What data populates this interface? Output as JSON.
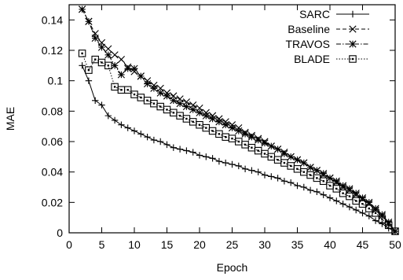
{
  "chart_data": {
    "type": "line",
    "xlabel": "Epoch",
    "ylabel": "MAE",
    "xlim": [
      0,
      50
    ],
    "ylim": [
      0,
      0.15
    ],
    "xticks": [
      0,
      5,
      10,
      15,
      20,
      25,
      30,
      35,
      40,
      45,
      50
    ],
    "xtick_labels": [
      "0",
      "5",
      "10",
      "15",
      "20",
      "25",
      "30",
      "35",
      "40",
      "45",
      "50"
    ],
    "yticks": [
      0,
      0.02,
      0.04,
      0.06,
      0.08,
      0.1,
      0.12,
      0.14
    ],
    "ytick_labels": [
      "0",
      "0.02",
      "0.04",
      "0.06",
      "0.08",
      "0.1",
      "0.12",
      "0.14"
    ],
    "grid": false,
    "legend_position": "top-right",
    "series": [
      {
        "name": "SARC",
        "marker": "plus",
        "dash": "solid",
        "x": [
          2,
          3,
          4,
          5,
          6,
          7,
          8,
          9,
          10,
          11,
          12,
          13,
          14,
          15,
          16,
          17,
          18,
          19,
          20,
          21,
          22,
          23,
          24,
          25,
          26,
          27,
          28,
          29,
          30,
          31,
          32,
          33,
          34,
          35,
          36,
          37,
          38,
          39,
          40,
          41,
          42,
          43,
          44,
          45,
          46,
          47,
          48,
          49,
          50
        ],
        "y": [
          0.11,
          0.1,
          0.087,
          0.084,
          0.077,
          0.074,
          0.071,
          0.069,
          0.067,
          0.065,
          0.063,
          0.061,
          0.06,
          0.058,
          0.056,
          0.055,
          0.054,
          0.053,
          0.051,
          0.05,
          0.049,
          0.047,
          0.046,
          0.045,
          0.044,
          0.042,
          0.041,
          0.04,
          0.038,
          0.037,
          0.036,
          0.034,
          0.033,
          0.031,
          0.03,
          0.028,
          0.027,
          0.025,
          0.023,
          0.021,
          0.019,
          0.017,
          0.015,
          0.013,
          0.011,
          0.008,
          0.006,
          0.003,
          0.001
        ]
      },
      {
        "name": "Baseline",
        "marker": "cross",
        "dash": "dashed",
        "x": [
          2,
          3,
          4,
          5,
          6,
          7,
          8,
          9,
          10,
          11,
          12,
          13,
          14,
          15,
          16,
          17,
          18,
          19,
          20,
          21,
          22,
          23,
          24,
          25,
          26,
          27,
          28,
          29,
          30,
          31,
          32,
          33,
          34,
          35,
          36,
          37,
          38,
          39,
          40,
          41,
          42,
          43,
          44,
          45,
          46,
          47,
          48,
          49,
          50
        ],
        "y": [
          0.147,
          0.139,
          0.131,
          0.125,
          0.121,
          0.117,
          0.114,
          0.109,
          0.106,
          0.103,
          0.1,
          0.097,
          0.095,
          0.092,
          0.09,
          0.088,
          0.086,
          0.084,
          0.082,
          0.079,
          0.077,
          0.075,
          0.073,
          0.071,
          0.069,
          0.066,
          0.064,
          0.062,
          0.06,
          0.057,
          0.055,
          0.053,
          0.05,
          0.048,
          0.046,
          0.043,
          0.041,
          0.038,
          0.036,
          0.033,
          0.03,
          0.028,
          0.025,
          0.022,
          0.019,
          0.015,
          0.011,
          0.006,
          0.001
        ]
      },
      {
        "name": "TRAVOS",
        "marker": "star",
        "dash": "dotdash",
        "x": [
          2,
          3,
          4,
          5,
          6,
          7,
          8,
          9,
          10,
          11,
          12,
          13,
          14,
          15,
          16,
          17,
          18,
          19,
          20,
          21,
          22,
          23,
          24,
          25,
          26,
          27,
          28,
          29,
          30,
          31,
          32,
          33,
          34,
          35,
          36,
          37,
          38,
          39,
          40,
          41,
          42,
          43,
          44,
          45,
          46,
          47,
          48,
          49,
          50
        ],
        "y": [
          0.147,
          0.139,
          0.128,
          0.122,
          0.117,
          0.11,
          0.104,
          0.108,
          0.108,
          0.103,
          0.098,
          0.095,
          0.092,
          0.09,
          0.087,
          0.085,
          0.083,
          0.081,
          0.079,
          0.077,
          0.075,
          0.073,
          0.071,
          0.069,
          0.067,
          0.065,
          0.063,
          0.061,
          0.059,
          0.057,
          0.055,
          0.052,
          0.05,
          0.048,
          0.046,
          0.043,
          0.041,
          0.039,
          0.036,
          0.034,
          0.031,
          0.029,
          0.026,
          0.023,
          0.02,
          0.016,
          0.012,
          0.007,
          0.001
        ]
      },
      {
        "name": "BLADE",
        "marker": "square",
        "dash": "dotted",
        "x": [
          2,
          3,
          4,
          5,
          6,
          7,
          8,
          9,
          10,
          11,
          12,
          13,
          14,
          15,
          16,
          17,
          18,
          19,
          20,
          21,
          22,
          23,
          24,
          25,
          26,
          27,
          28,
          29,
          30,
          31,
          32,
          33,
          34,
          35,
          36,
          37,
          38,
          39,
          40,
          41,
          42,
          43,
          44,
          45,
          46,
          47,
          48,
          49,
          50
        ],
        "y": [
          0.118,
          0.107,
          0.114,
          0.112,
          0.11,
          0.096,
          0.094,
          0.094,
          0.091,
          0.089,
          0.087,
          0.085,
          0.083,
          0.081,
          0.079,
          0.077,
          0.075,
          0.073,
          0.071,
          0.069,
          0.067,
          0.065,
          0.063,
          0.062,
          0.06,
          0.058,
          0.056,
          0.054,
          0.052,
          0.05,
          0.048,
          0.046,
          0.044,
          0.042,
          0.04,
          0.038,
          0.036,
          0.034,
          0.031,
          0.029,
          0.026,
          0.024,
          0.021,
          0.019,
          0.016,
          0.013,
          0.009,
          0.005,
          0.001
        ]
      }
    ]
  }
}
